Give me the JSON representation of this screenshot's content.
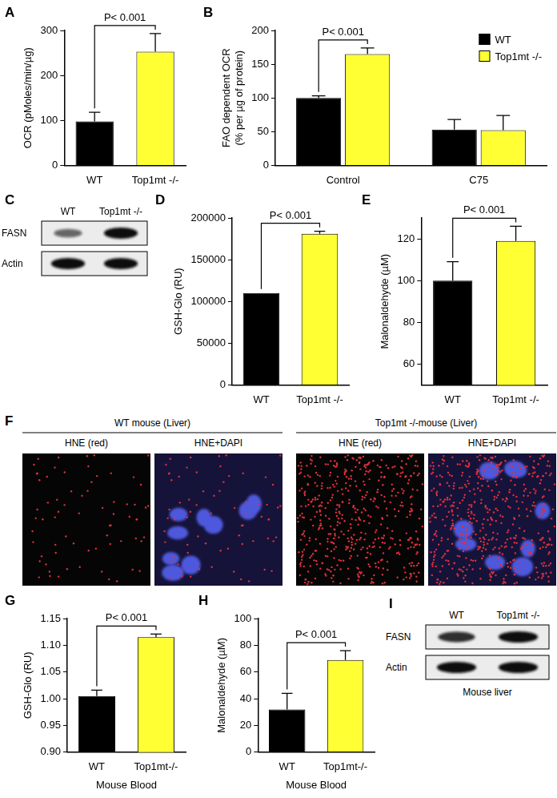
{
  "chart_data": [
    {
      "panel": "A",
      "type": "bar",
      "ylabel": "OCR (pMoles/min/µg)",
      "categories": [
        "WT",
        "Top1mt -/-"
      ],
      "values": [
        98,
        253
      ],
      "errors": [
        20,
        40
      ],
      "colors": [
        "#000000",
        "#ffff33"
      ],
      "ylim": [
        0,
        300
      ],
      "yticks": [
        0,
        100,
        200,
        300
      ],
      "annotations": [
        {
          "text": "P< 0.001"
        }
      ]
    },
    {
      "panel": "B",
      "type": "bar",
      "ylabel": [
        "FAO dependent OCR",
        "(% per µg of protein)"
      ],
      "categories": [
        "Control",
        "C75"
      ],
      "series": [
        {
          "name": "WT",
          "color": "#000000",
          "values": [
            100,
            53
          ],
          "errors": [
            3,
            15
          ]
        },
        {
          "name": "Top1mt -/-",
          "color": "#ffff33",
          "values": [
            165,
            52
          ],
          "errors": [
            9,
            22
          ]
        }
      ],
      "ylim": [
        0,
        200
      ],
      "yticks": [
        0,
        50,
        100,
        150,
        200
      ],
      "legend": "upper right",
      "annotations": [
        {
          "text": "P< 0.001",
          "category": "Control"
        }
      ]
    },
    {
      "panel": "D",
      "type": "bar",
      "ylabel": "GSH-Glo (RU)",
      "categories": [
        "WT",
        "Top1mt -/-"
      ],
      "values": [
        110000,
        181000
      ],
      "errors": [
        0,
        3000
      ],
      "colors": [
        "#000000",
        "#ffff33"
      ],
      "ylim": [
        0,
        200000
      ],
      "yticks": [
        0,
        50000,
        100000,
        150000,
        200000
      ],
      "annotations": [
        {
          "text": "P< 0.001"
        }
      ]
    },
    {
      "panel": "E",
      "type": "bar",
      "ylabel": "Malonaldehyde (µM)",
      "categories": [
        "WT",
        "Top1mt -/-"
      ],
      "values": [
        100,
        119
      ],
      "errors": [
        9,
        7
      ],
      "colors": [
        "#000000",
        "#ffff33"
      ],
      "ylim": [
        50,
        130
      ],
      "yticks": [
        60,
        80,
        100,
        120
      ],
      "annotations": [
        {
          "text": "P< 0.001"
        }
      ]
    },
    {
      "panel": "G",
      "type": "bar",
      "ylabel": "GSH-Glo (RU)",
      "xlabel": "Mouse Blood",
      "categories": [
        "WT",
        "Top1mt-/-"
      ],
      "values": [
        1.005,
        1.115
      ],
      "errors": [
        0.011,
        0.006
      ],
      "colors": [
        "#000000",
        "#ffff33"
      ],
      "ylim": [
        0.9,
        1.15
      ],
      "yticks": [
        {
          "value": 0.9,
          "label": "0.90"
        },
        0.95,
        {
          "value": 1,
          "label": "1.00"
        },
        1.05,
        {
          "value": 1.1,
          "label": "1.10"
        },
        1.15
      ],
      "annotations": [
        {
          "text": "P< 0.001"
        }
      ]
    },
    {
      "panel": "H",
      "type": "bar",
      "ylabel": "Malonaldehyde (µM)",
      "xlabel": "Mouse Blood",
      "categories": [
        "WT",
        "Top1mt-/-"
      ],
      "values": [
        32,
        69
      ],
      "errors": [
        12,
        7
      ],
      "colors": [
        "#000000",
        "#ffff33"
      ],
      "ylim": [
        0,
        100
      ],
      "yticks": [
        0,
        20,
        40,
        60,
        80,
        100
      ],
      "annotations": [
        {
          "text": "P< 0.001"
        }
      ]
    }
  ],
  "blots": [
    {
      "panel": "C",
      "lanes": [
        "WT",
        "Top1mt -/-"
      ],
      "rows": [
        {
          "name": "FASN",
          "intensity": [
            0.45,
            1
          ]
        },
        {
          "name": "Actin",
          "intensity": [
            1,
            1
          ]
        }
      ]
    },
    {
      "panel": "I",
      "lanes": [
        "WT",
        "Top1mt -/-"
      ],
      "caption": "Mouse liver",
      "rows": [
        {
          "name": "FASN",
          "intensity": [
            0.8,
            1
          ]
        },
        {
          "name": "Actin",
          "intensity": [
            1,
            1
          ]
        }
      ]
    }
  ],
  "micrographs": {
    "panel": "F",
    "groups": [
      {
        "title": "WT mouse (Liver)",
        "images": [
          "HNE (red)",
          "HNE+DAPI"
        ]
      },
      {
        "title": "Top1mt -/-mouse (Liver)",
        "images": [
          "HNE (red)",
          "HNE+DAPI"
        ]
      }
    ]
  }
}
